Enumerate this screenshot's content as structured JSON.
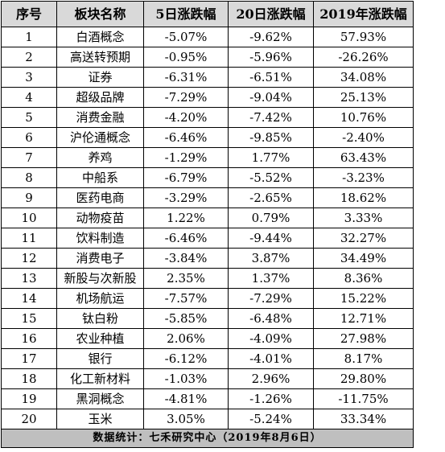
{
  "table": {
    "columns": [
      "序号",
      "板块名称",
      "5日涨跌幅",
      "20日涨跌幅",
      "2019年涨跌幅"
    ],
    "rows": [
      [
        "1",
        "白酒概念",
        "-5.07%",
        "-9.62%",
        "57.93%"
      ],
      [
        "2",
        "高送转预期",
        "-0.95%",
        "-5.96%",
        "-26.26%"
      ],
      [
        "3",
        "证券",
        "-6.31%",
        "-6.51%",
        "34.08%"
      ],
      [
        "4",
        "超级品牌",
        "-7.29%",
        "-9.04%",
        "25.13%"
      ],
      [
        "5",
        "消费金融",
        "-4.20%",
        "-7.42%",
        "10.76%"
      ],
      [
        "6",
        "沪伦通概念",
        "-6.46%",
        "-9.85%",
        "-2.40%"
      ],
      [
        "7",
        "养鸡",
        "-1.29%",
        "1.77%",
        "63.43%"
      ],
      [
        "8",
        "中船系",
        "-6.79%",
        "-5.52%",
        "-3.23%"
      ],
      [
        "9",
        "医药电商",
        "-3.29%",
        "-2.65%",
        "18.62%"
      ],
      [
        "10",
        "动物疫苗",
        "1.22%",
        "0.79%",
        "3.33%"
      ],
      [
        "11",
        "饮料制造",
        "-6.46%",
        "-9.44%",
        "32.27%"
      ],
      [
        "12",
        "消费电子",
        "-3.84%",
        "3.87%",
        "34.49%"
      ],
      [
        "13",
        "新股与次新股",
        "2.35%",
        "1.37%",
        "8.36%"
      ],
      [
        "14",
        "机场航运",
        "-7.57%",
        "-7.29%",
        "15.22%"
      ],
      [
        "15",
        "钛白粉",
        "-5.85%",
        "-6.48%",
        "12.71%"
      ],
      [
        "16",
        "农业种植",
        "2.06%",
        "-4.09%",
        "27.98%"
      ],
      [
        "17",
        "银行",
        "-6.12%",
        "-4.01%",
        "8.17%"
      ],
      [
        "18",
        "化工新材料",
        "-1.03%",
        "2.96%",
        "29.80%"
      ],
      [
        "19",
        "黑洞概念",
        "-4.81%",
        "-1.26%",
        "-11.75%"
      ],
      [
        "20",
        "玉米",
        "3.05%",
        "-5.24%",
        "33.34%"
      ]
    ],
    "footer": "数据统计：七禾研究中心（2019年8月6日）"
  },
  "colors": {
    "header_bg": "#d9d9d9",
    "footer_bg": "#bfbfbf",
    "border": "#000000",
    "text": "#000000"
  }
}
